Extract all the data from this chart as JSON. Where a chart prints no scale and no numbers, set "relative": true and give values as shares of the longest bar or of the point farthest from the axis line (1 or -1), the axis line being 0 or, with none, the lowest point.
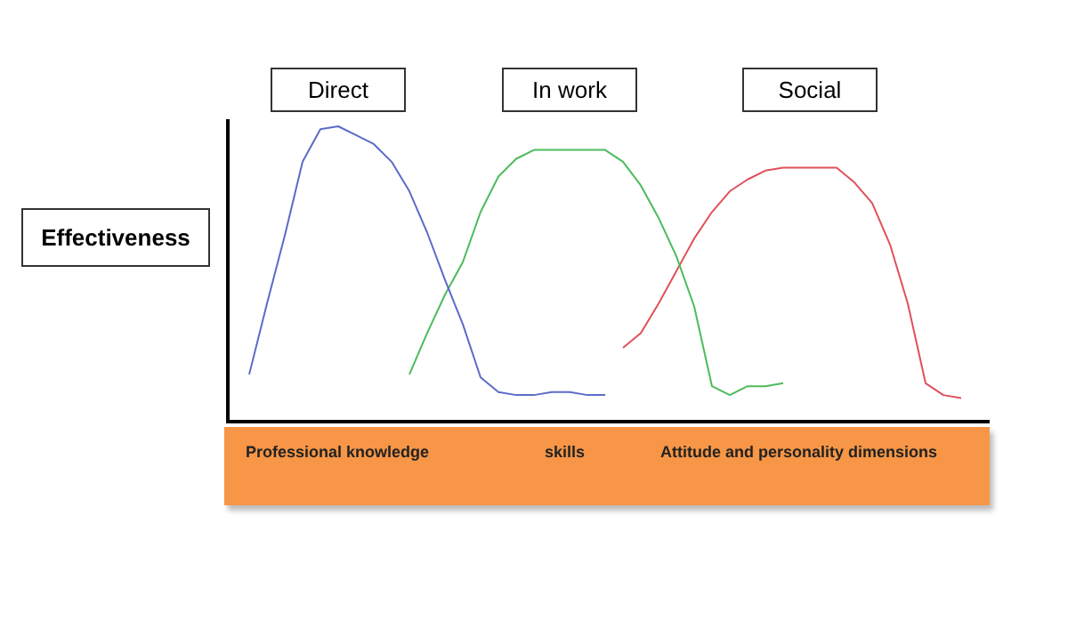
{
  "chart_data": {
    "type": "line",
    "relative": true,
    "ylabel": "Effectiveness",
    "categories": [
      null,
      null,
      null,
      null,
      null,
      null,
      null,
      null,
      null,
      null,
      null,
      null,
      null,
      null,
      null,
      null,
      null,
      null,
      null,
      null,
      null,
      null,
      null,
      null,
      null,
      null,
      null,
      null,
      null,
      null,
      null,
      null,
      null,
      null,
      null,
      null,
      null,
      null,
      null,
      null,
      null,
      null,
      null
    ],
    "series": [
      {
        "name": "Direct",
        "color": "#5b6bc8",
        "values": [
          null,
          0.16,
          0.4,
          0.63,
          0.88,
          0.99,
          1,
          0.97,
          0.94,
          0.88,
          0.78,
          0.64,
          0.48,
          0.33,
          0.15,
          0.1,
          0.09,
          0.09,
          0.1,
          0.1,
          0.09,
          0.09,
          null,
          null,
          null,
          null,
          null,
          null,
          null,
          null,
          null,
          null,
          null,
          null,
          null,
          null,
          null,
          null,
          null,
          null,
          null,
          null,
          null
        ]
      },
      {
        "name": "In work",
        "color": "#4cbb5c",
        "values": [
          null,
          null,
          null,
          null,
          null,
          null,
          null,
          null,
          null,
          null,
          0.16,
          0.3,
          0.43,
          0.54,
          0.71,
          0.83,
          0.89,
          0.92,
          0.92,
          0.92,
          0.92,
          0.92,
          0.88,
          0.8,
          0.69,
          0.56,
          0.39,
          0.12,
          0.09,
          0.12,
          0.12,
          0.13,
          null,
          null,
          null,
          null,
          null,
          null,
          null,
          null,
          null,
          null,
          null
        ]
      },
      {
        "name": "Social",
        "color": "#e0505a",
        "values": [
          null,
          null,
          null,
          null,
          null,
          null,
          null,
          null,
          null,
          null,
          null,
          null,
          null,
          null,
          null,
          null,
          null,
          null,
          null,
          null,
          null,
          null,
          0.25,
          0.3,
          0.4,
          0.51,
          0.62,
          0.71,
          0.78,
          0.82,
          0.85,
          0.86,
          0.86,
          0.86,
          0.86,
          0.81,
          0.74,
          0.6,
          0.4,
          0.13,
          0.09,
          0.08,
          null
        ]
      }
    ],
    "annotations": [
      "Professional knowledge",
      "skills",
      "Attitude and personality dimensions"
    ],
    "marker": "none",
    "grid": false
  }
}
